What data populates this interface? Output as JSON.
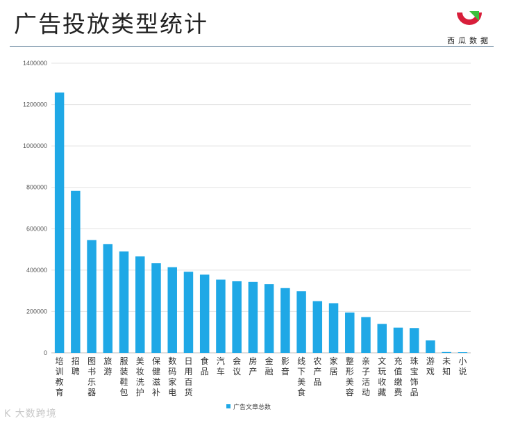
{
  "header": {
    "title": "广告投放类型统计",
    "logo_text": "西瓜数据"
  },
  "watermark": "K 大数跨境",
  "colors": {
    "bar": "#1fa8e6",
    "logo_red": "#d81e3a",
    "logo_green": "#3cc13b"
  },
  "chart_data": {
    "type": "bar",
    "categories": [
      "培训教育",
      "招聘",
      "图书乐器",
      "旅游",
      "服装鞋包",
      "美妆洗护",
      "保健滋补",
      "数码家电",
      "日用百货",
      "食品",
      "汽车",
      "会议",
      "房产",
      "金融",
      "影音",
      "线下美食",
      "农产品",
      "家居",
      "整形美容",
      "亲子活动",
      "文玩收藏",
      "充值缴费",
      "珠宝饰品",
      "游戏",
      "未知",
      "小说"
    ],
    "series": [
      {
        "name": "广告文章总数",
        "values": [
          1258000,
          783000,
          545000,
          526000,
          490000,
          466000,
          433000,
          414000,
          392000,
          378000,
          354000,
          346000,
          343000,
          332000,
          313000,
          298000,
          250000,
          240000,
          195000,
          173000,
          140000,
          122000,
          120000,
          60000,
          4000,
          3000
        ]
      }
    ],
    "yticks": [
      "0",
      "200000",
      "400000",
      "600000",
      "800000",
      "1000000",
      "1200000",
      "1400000"
    ],
    "ylim": [
      0,
      1400000
    ],
    "grid": true,
    "legend": "bottom",
    "title": "",
    "xlabel": "",
    "ylabel": ""
  }
}
